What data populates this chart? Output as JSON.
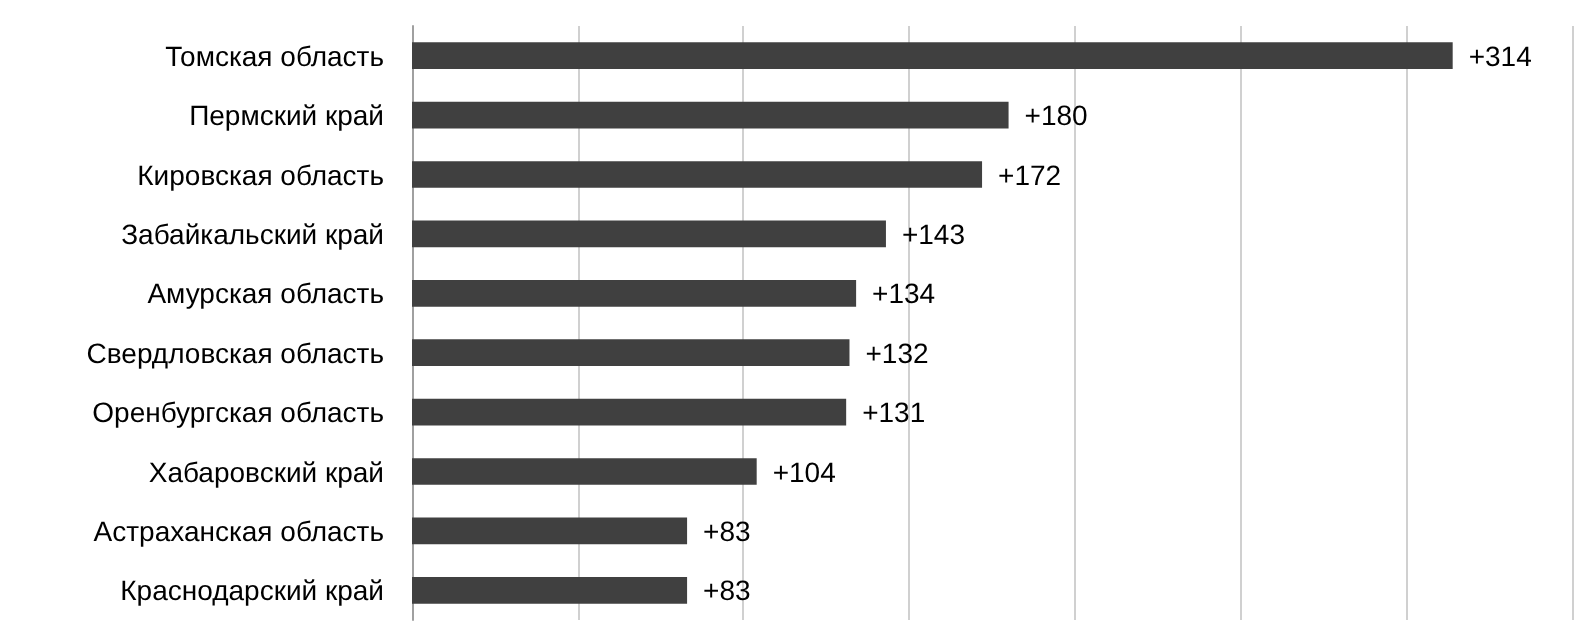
{
  "chart_data": {
    "type": "bar",
    "orientation": "horizontal",
    "categories": [
      "Томская область",
      "Пермский край",
      "Кировская область",
      "Забайкальский край",
      "Амурская область",
      "Свердловская область",
      "Оренбургская область",
      "Хабаровский край",
      "Астраханская область",
      "Краснодарский край"
    ],
    "values": [
      314,
      180,
      172,
      143,
      134,
      132,
      131,
      104,
      83,
      83
    ],
    "value_labels": [
      "+314",
      "+180",
      "+172",
      "+143",
      "+134",
      "+132",
      "+131",
      "+104",
      "+83",
      "+83"
    ],
    "color": "#404040",
    "xlim": [
      0,
      350
    ],
    "xticks": [
      {
        "value": 0,
        "label": null
      },
      {
        "value": 50,
        "label": null
      },
      {
        "value": 100,
        "label": null
      },
      {
        "value": 150,
        "label": null
      },
      {
        "value": 200,
        "label": null
      },
      {
        "value": 250,
        "label": null
      },
      {
        "value": 300,
        "label": null
      },
      {
        "value": 350,
        "label": null
      }
    ],
    "tick_labels": "y",
    "grid": "x"
  }
}
